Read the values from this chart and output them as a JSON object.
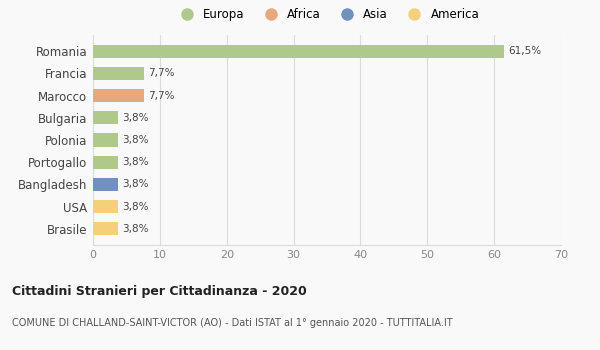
{
  "countries": [
    "Romania",
    "Francia",
    "Marocco",
    "Bulgaria",
    "Polonia",
    "Portogallo",
    "Bangladesh",
    "USA",
    "Brasile"
  ],
  "values": [
    61.5,
    7.7,
    7.7,
    3.8,
    3.8,
    3.8,
    3.8,
    3.8,
    3.8
  ],
  "labels": [
    "61,5%",
    "7,7%",
    "7,7%",
    "3,8%",
    "3,8%",
    "3,8%",
    "3,8%",
    "3,8%",
    "3,8%"
  ],
  "colors": [
    "#aec98a",
    "#aec98a",
    "#e8a87c",
    "#aec98a",
    "#aec98a",
    "#aec98a",
    "#7191c0",
    "#f5d07a",
    "#f5d07a"
  ],
  "legend": [
    {
      "label": "Europa",
      "color": "#aec98a"
    },
    {
      "label": "Africa",
      "color": "#e8a87c"
    },
    {
      "label": "Asia",
      "color": "#7191c0"
    },
    {
      "label": "America",
      "color": "#f5d07a"
    }
  ],
  "xlim": [
    0,
    70
  ],
  "xticks": [
    0,
    10,
    20,
    30,
    40,
    50,
    60,
    70
  ],
  "title": "Cittadini Stranieri per Cittadinanza - 2020",
  "subtitle": "COMUNE DI CHALLAND-SAINT-VICTOR (AO) - Dati ISTAT al 1° gennaio 2020 - TUTTITALIA.IT",
  "background_color": "#f9f9f9",
  "grid_color": "#d8ddd8"
}
